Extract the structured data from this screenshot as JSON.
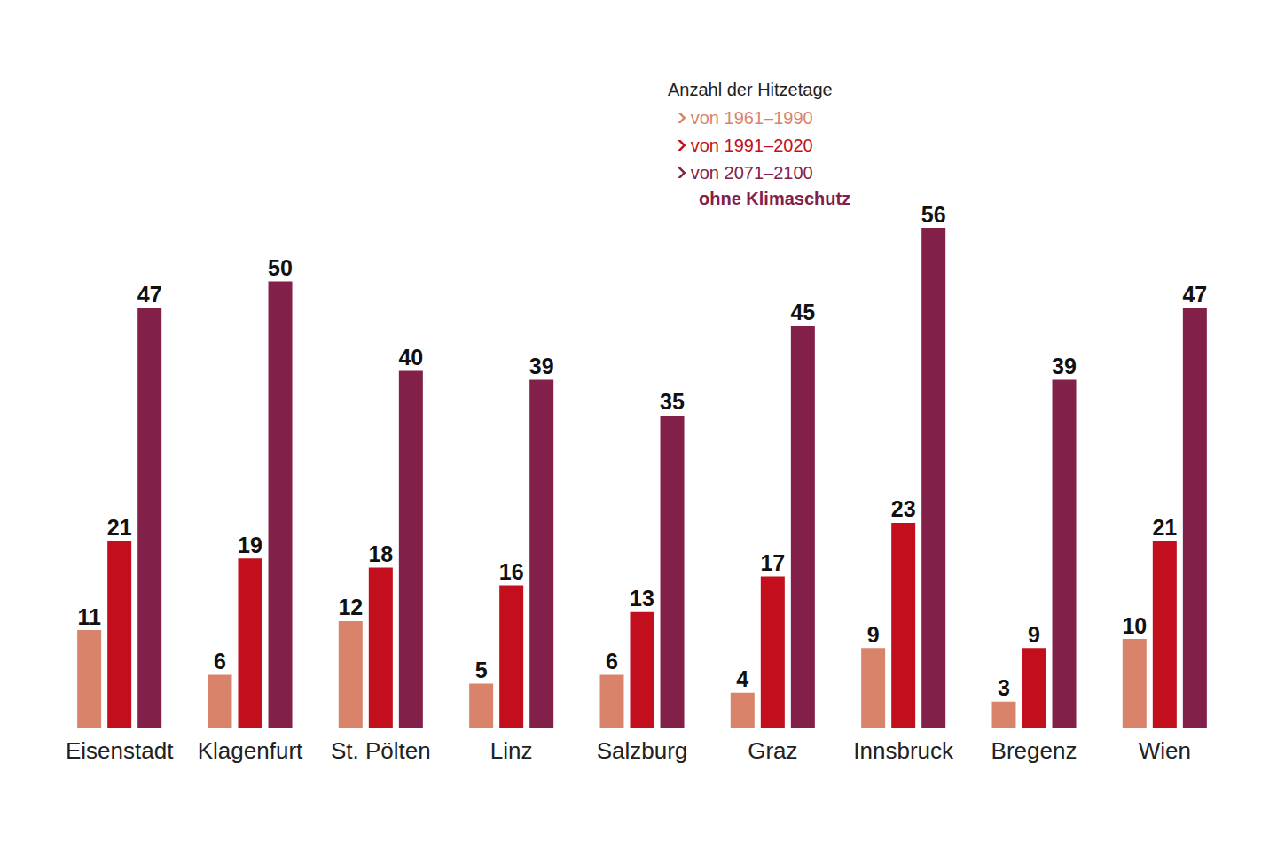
{
  "chart_data": {
    "type": "bar",
    "title": "Anzahl der Hitzetage",
    "annotations": [
      "ohne Klimaschutz"
    ],
    "categories": [
      "Eisenstadt",
      "Klagenfurt",
      "St. Pölten",
      "Linz",
      "Salzburg",
      "Graz",
      "Innsbruck",
      "Bregenz",
      "Wien"
    ],
    "series": [
      {
        "name": "von 1961–1990",
        "color": "#d9846a",
        "values": [
          11,
          6,
          12,
          5,
          6,
          4,
          9,
          3,
          10
        ]
      },
      {
        "name": "von 1991–2020",
        "color": "#c30f1d",
        "values": [
          21,
          19,
          18,
          16,
          13,
          17,
          23,
          9,
          21
        ]
      },
      {
        "name": "von 2071–2100",
        "color": "#83204a",
        "values": [
          47,
          50,
          40,
          39,
          35,
          45,
          56,
          39,
          47
        ]
      }
    ],
    "ylim": [
      0,
      56
    ],
    "grid": false,
    "legend": "top",
    "data_labels": true,
    "tick_labels": "x"
  }
}
